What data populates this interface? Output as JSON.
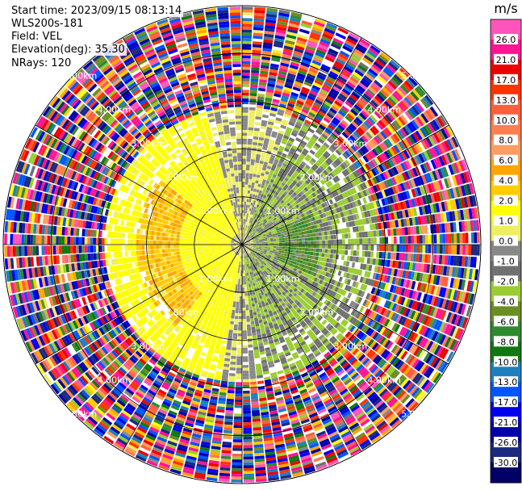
{
  "info": {
    "start_time": "Start time: 2023/09/15 08:13:14",
    "instrument": "WLS200s-181",
    "field": "Field: VEL",
    "elevation": "Elevation(deg): 35.30",
    "nrays": "NRays: 120"
  },
  "chart_data": {
    "type": "heatmap",
    "subtype": "polar-ppi",
    "field": "VEL",
    "nrays": 120,
    "max_range_km": 5.0,
    "range_rings_km": [
      1.0,
      2.0,
      3.0,
      4.0,
      5.0
    ],
    "ring_labels": [
      "1.00km",
      "2.00km",
      "3.00km",
      "4.00km",
      "5.00km"
    ],
    "spokes_deg": [
      0,
      30,
      60,
      90,
      120,
      150,
      180,
      210,
      240,
      270,
      300,
      330
    ],
    "colorbar": {
      "unit": "m/s",
      "ticks": [
        "26.0",
        "21.0",
        "17.0",
        "13.0",
        "10.0",
        "8.0",
        "6.0",
        "4.0",
        "2.0",
        "1.0",
        "0.0",
        "-1.0",
        "-2.0",
        "-4.0",
        "-6.0",
        "-8.0",
        "-10.0",
        "-13.0",
        "-17.0",
        "-21.0",
        "-26.0",
        "-30.0"
      ],
      "colors": [
        "#ff55bb",
        "#ff1493",
        "#ee0000",
        "#ff3300",
        "#ff5f3f",
        "#ff7f50",
        "#ff9c5f",
        "#ffa500",
        "#ffcc00",
        "#ffff00",
        "#eeee60",
        "#888888",
        "#707070",
        "#9acd32",
        "#6b8e23",
        "#2e8b2e",
        "#117711",
        "#1e7fbf",
        "#0055ff",
        "#0000ee",
        "#0000aa",
        "#1a2a80",
        "#000066"
      ]
    },
    "pattern": {
      "noise_start_km": 2.85,
      "inbound_sector_deg": [
        20,
        175
      ],
      "outbound_sector_deg": [
        190,
        345
      ]
    }
  }
}
